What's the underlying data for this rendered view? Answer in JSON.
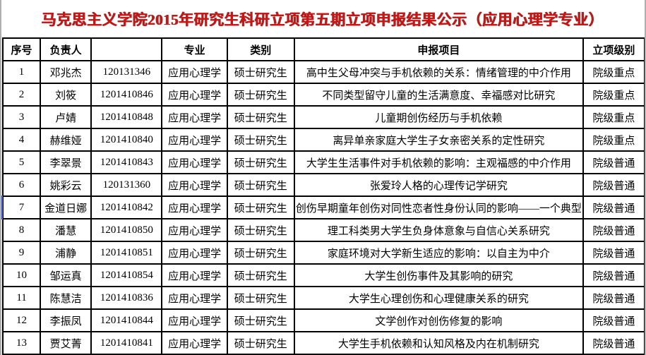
{
  "title": "马克思主义学院2015年研究生科研立项第五期立项申报结果公示（应用心理学专业）",
  "colors": {
    "title_red": "#d21111",
    "grid_line": "#000000",
    "selection_edge_blue": "#3c5bd4",
    "background": "#ffffff"
  },
  "table": {
    "headers": [
      "序号",
      "负责人",
      "",
      "专业",
      "类别",
      "申报项目",
      "立项级别"
    ],
    "rows": [
      [
        "1",
        "邓兆杰",
        "120131346",
        "应用心理学",
        "硕士研究生",
        "高中生父母冲突与手机依赖的关系：情绪管理的中介作用",
        "院级重点"
      ],
      [
        "2",
        "刘筱",
        "1201410846",
        "应用心理学",
        "硕士研究生",
        "不同类型留守儿童的生活满意度、幸福感对比研究",
        "院级重点"
      ],
      [
        "3",
        "卢婧",
        "1201410848",
        "应用心理学",
        "硕士研究生",
        "儿童期创伤经历与手机依赖",
        "院级重点"
      ],
      [
        "4",
        "赫维娅",
        "1201410840",
        "应用心理学",
        "硕士研究生",
        "离异单亲家庭大学生子女亲密关系的定性研究",
        "院级重点"
      ],
      [
        "5",
        "李翠景",
        "1201410843",
        "应用心理学",
        "硕士研究生",
        "大学生生活事件对手机依赖的影响：主观福感的中介作用",
        "院级普通"
      ],
      [
        "6",
        "姚彩云",
        "120131360",
        "应用心理学",
        "硕士研究生",
        "张爱玲人格的心理传记学研究",
        "院级普通"
      ],
      [
        "7",
        "金道日娜",
        "1201410842",
        "应用心理学",
        "硕士研究生",
        "创伤早期童年创伤对同性恋者性身份认同的影响——一个典型",
        "院级普通"
      ],
      [
        "8",
        "潘慧",
        "1201410850",
        "应用心理学",
        "硕士研究生",
        "理工科类男大学生负身体意象与自信心关系研究",
        "院级普通"
      ],
      [
        "9",
        "浦静",
        "1201410851",
        "应用心理学",
        "硕士研究生",
        "家庭环境对大学新生适应的影响：以自主为中介",
        "院级普通"
      ],
      [
        "10",
        "邹运真",
        "1201410854",
        "应用心理学",
        "硕士研究生",
        "大学生创伤事件及其影响的研究",
        "院级普通"
      ],
      [
        "11",
        "陈慧洁",
        "1201410836",
        "应用心理学",
        "硕士研究生",
        "大学生心理创伤和心理健康关系的研究",
        "院级普通"
      ],
      [
        "12",
        "李振凤",
        "1201410844",
        "应用心理学",
        "硕士研究生",
        "文学创作对创伤修复的影响",
        "院级普通"
      ],
      [
        "13",
        "贾艾菁",
        "1201410841",
        "应用心理学",
        "硕士研究生",
        "大学生手机依赖和认知风格及内在机制研究",
        "院级普通"
      ]
    ]
  }
}
